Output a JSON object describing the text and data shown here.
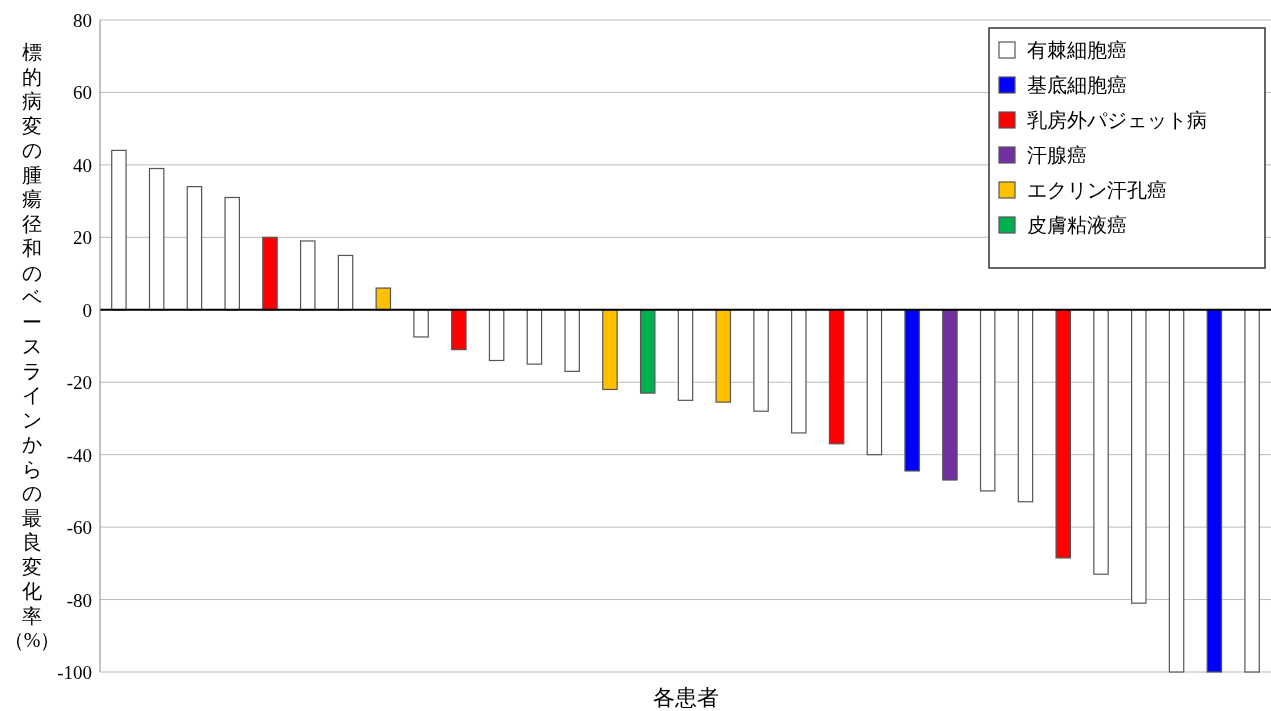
{
  "chart_data": {
    "type": "bar",
    "xlabel": "各患者",
    "ylabel": "標的病変の腫瘍径和のベースラインからの最良変化率（%）",
    "categories": [
      null,
      null,
      null,
      null,
      null,
      null,
      null,
      null,
      null,
      null,
      null,
      null,
      null,
      null,
      null,
      null,
      null,
      null,
      null,
      null,
      null,
      null,
      null,
      null,
      null,
      null,
      null,
      null,
      null,
      null,
      null
    ],
    "series": [
      {
        "name": "有棘細胞癌",
        "color": "#ffffff",
        "values": [
          44,
          39,
          34,
          31,
          null,
          19,
          15,
          null,
          -7.5,
          null,
          -14,
          -15,
          -17,
          null,
          null,
          -25,
          null,
          -28,
          -34,
          null,
          -40,
          null,
          null,
          -50,
          -53,
          null,
          -73,
          -81,
          -100,
          null,
          -100
        ]
      },
      {
        "name": "基底細胞癌",
        "color": "#0000ff",
        "values": [
          null,
          null,
          null,
          null,
          null,
          null,
          null,
          null,
          null,
          null,
          null,
          null,
          null,
          null,
          null,
          null,
          null,
          null,
          null,
          null,
          null,
          -44.5,
          null,
          null,
          null,
          null,
          null,
          null,
          null,
          -100,
          null
        ]
      },
      {
        "name": "乳房外パジェット病",
        "color": "#ff0000",
        "values": [
          null,
          null,
          null,
          null,
          20,
          null,
          null,
          null,
          null,
          -11,
          null,
          null,
          null,
          null,
          null,
          null,
          null,
          null,
          null,
          -37,
          null,
          null,
          null,
          null,
          null,
          -68.5,
          null,
          null,
          null,
          null,
          null
        ]
      },
      {
        "name": "汗腺癌",
        "color": "#7030a0",
        "values": [
          null,
          null,
          null,
          null,
          null,
          null,
          null,
          null,
          null,
          null,
          null,
          null,
          null,
          null,
          null,
          null,
          null,
          null,
          null,
          null,
          null,
          null,
          -47,
          null,
          null,
          null,
          null,
          null,
          null,
          null,
          null
        ]
      },
      {
        "name": "エクリン汗孔癌",
        "color": "#ffc000",
        "values": [
          null,
          null,
          null,
          null,
          null,
          null,
          null,
          6,
          null,
          null,
          null,
          null,
          null,
          -22,
          null,
          null,
          -25.5,
          null,
          null,
          null,
          null,
          null,
          null,
          null,
          null,
          null,
          null,
          null,
          null,
          null,
          null
        ]
      },
      {
        "name": "皮膚粘液癌",
        "color": "#00b050",
        "values": [
          null,
          null,
          null,
          null,
          null,
          null,
          null,
          null,
          null,
          null,
          null,
          null,
          null,
          null,
          -23,
          null,
          null,
          null,
          null,
          null,
          null,
          null,
          null,
          null,
          null,
          null,
          null,
          null,
          null,
          null,
          null
        ]
      }
    ],
    "ylim": [
      -100,
      80
    ],
    "yticks": [
      -100,
      -80,
      -60,
      -40,
      -20,
      0,
      20,
      40,
      60,
      80
    ],
    "grid": "y",
    "legend": "top right"
  }
}
